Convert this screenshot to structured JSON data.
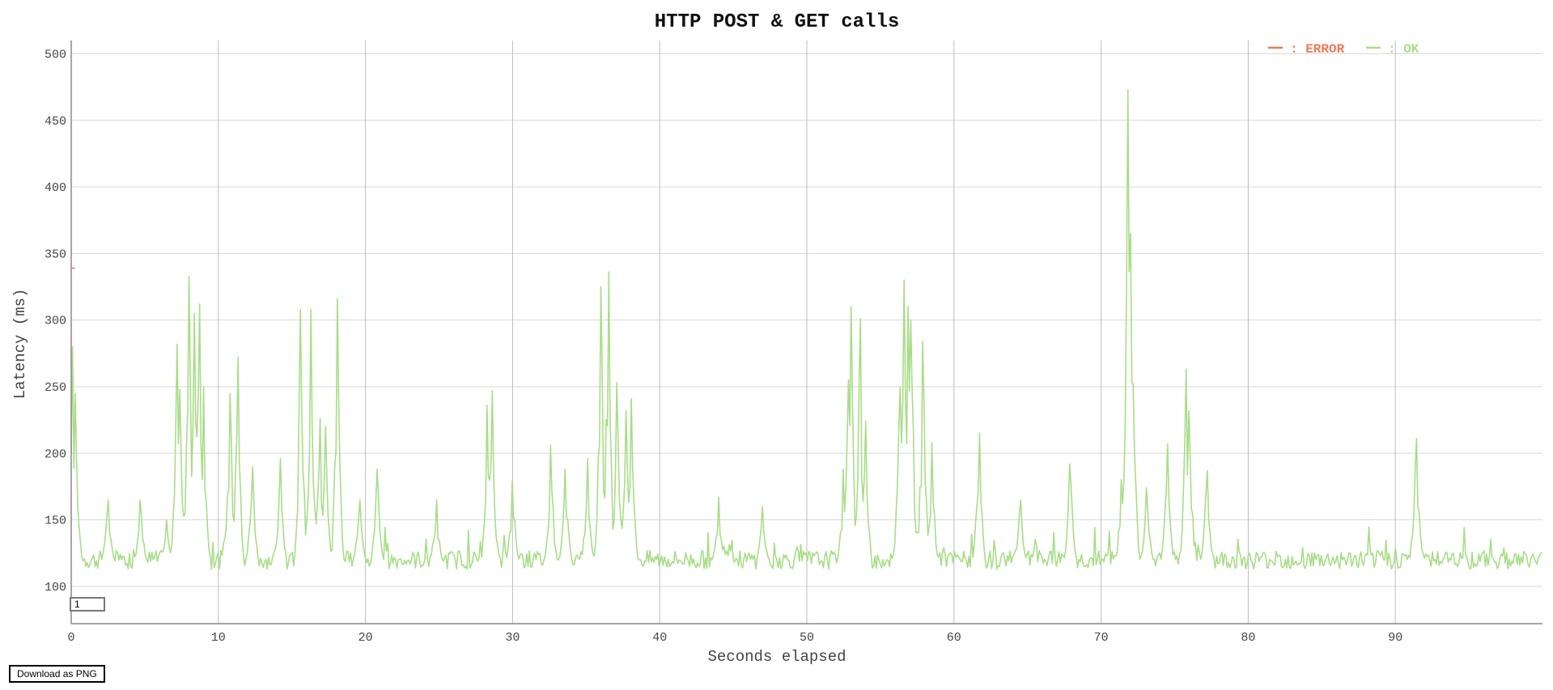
{
  "download_label": "Download as PNG",
  "zoom_value": "1",
  "colors": {
    "error": "#f07a5a",
    "ok": "#a8dd88",
    "title": "#111111"
  },
  "chart_data": {
    "type": "line",
    "title": "HTTP POST & GET calls",
    "xlabel": "Seconds elapsed",
    "ylabel": "Latency (ms)",
    "xlim": [
      0,
      100
    ],
    "ylim": [
      72,
      510
    ],
    "xticks": [
      0,
      10,
      20,
      30,
      40,
      50,
      60,
      70,
      80,
      90
    ],
    "yticks": [
      100,
      150,
      200,
      250,
      300,
      350,
      400,
      450,
      500
    ],
    "grid": true,
    "legend_position": "top-right",
    "series": [
      {
        "name": "ERROR",
        "color": "#f07a5a",
        "points": [
          [
            0.1,
            339
          ]
        ]
      },
      {
        "name": "OK",
        "color": "#a8dd88",
        "baseline": 120,
        "peaks": [
          [
            0.05,
            280
          ],
          [
            0.3,
            245
          ],
          [
            2.5,
            165
          ],
          [
            4.7,
            165
          ],
          [
            6.5,
            150
          ],
          [
            7.2,
            282
          ],
          [
            7.4,
            248
          ],
          [
            8.0,
            333
          ],
          [
            8.4,
            305
          ],
          [
            8.7,
            312
          ],
          [
            9.0,
            250
          ],
          [
            10.8,
            245
          ],
          [
            11.3,
            272
          ],
          [
            12.3,
            190
          ],
          [
            14.2,
            196
          ],
          [
            15.6,
            308
          ],
          [
            16.3,
            308
          ],
          [
            16.9,
            226
          ],
          [
            17.3,
            220
          ],
          [
            18.1,
            316
          ],
          [
            19.6,
            165
          ],
          [
            20.8,
            188
          ],
          [
            24.8,
            165
          ],
          [
            28.3,
            236
          ],
          [
            28.6,
            247
          ],
          [
            30.0,
            179
          ],
          [
            32.6,
            206
          ],
          [
            33.6,
            188
          ],
          [
            35.1,
            196
          ],
          [
            36.0,
            325
          ],
          [
            36.5,
            336
          ],
          [
            37.1,
            253
          ],
          [
            37.7,
            232
          ],
          [
            38.1,
            241
          ],
          [
            44.0,
            167
          ],
          [
            47.0,
            160
          ],
          [
            52.5,
            188
          ],
          [
            52.8,
            255
          ],
          [
            53.0,
            310
          ],
          [
            53.6,
            301
          ],
          [
            54.0,
            224
          ],
          [
            56.3,
            250
          ],
          [
            56.6,
            330
          ],
          [
            56.9,
            310
          ],
          [
            57.1,
            300
          ],
          [
            57.9,
            284
          ],
          [
            58.5,
            208
          ],
          [
            61.7,
            215
          ],
          [
            64.5,
            165
          ],
          [
            67.9,
            192
          ],
          [
            71.4,
            180
          ],
          [
            71.8,
            473
          ],
          [
            72.0,
            365
          ],
          [
            72.2,
            252
          ],
          [
            73.1,
            174
          ],
          [
            74.5,
            207
          ],
          [
            75.8,
            263
          ],
          [
            76.0,
            232
          ],
          [
            77.2,
            187
          ],
          [
            91.4,
            211
          ],
          [
            91.6,
            155
          ]
        ]
      }
    ]
  }
}
